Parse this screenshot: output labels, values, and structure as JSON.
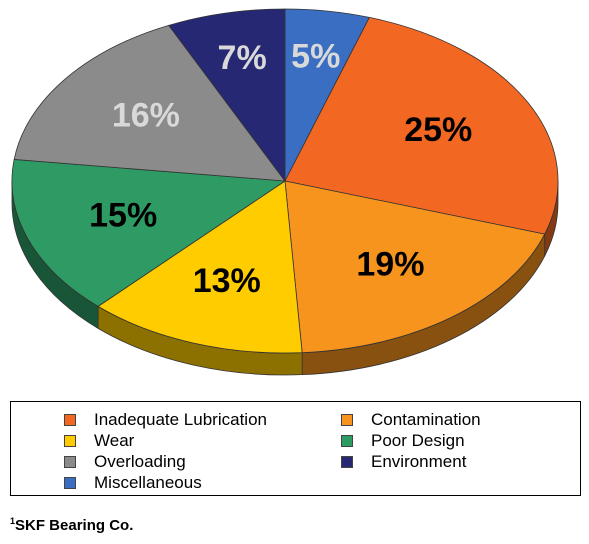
{
  "chart_data": {
    "type": "pie",
    "categories": [
      "Inadequate Lubrication",
      "Contamination",
      "Wear",
      "Poor Design",
      "Overloading",
      "Environment",
      "Miscellaneous"
    ],
    "values": [
      25,
      19,
      13,
      15,
      16,
      7,
      5
    ],
    "data_labels": [
      "25%",
      "19%",
      "13%",
      "15%",
      "16%",
      "7%",
      "5%"
    ],
    "colors": [
      "#f26722",
      "#f7941d",
      "#ffcc00",
      "#2e9a64",
      "#8a8b8a",
      "#262874",
      "#3a6ec2"
    ],
    "label_colors": [
      "#000000",
      "#000000",
      "#000000",
      "#000000",
      "#d9d9d9",
      "#d9d9d9",
      "#d9d9d9"
    ],
    "pie_style": "3d",
    "legend": {
      "placement": "bottom",
      "entries": [
        "Inadequate Lubrication",
        "Contamination",
        "Wear",
        "Poor Design",
        "Overloading",
        "Environment",
        "Miscellaneous"
      ]
    }
  },
  "footnote": {
    "marker": "1",
    "text": "SKF Bearing Co."
  }
}
